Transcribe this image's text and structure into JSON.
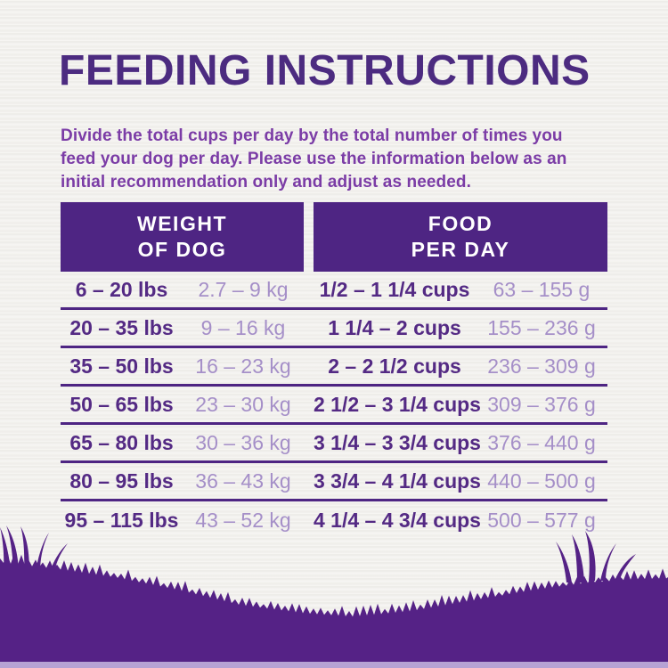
{
  "page": {
    "title": "FEEDING INSTRUCTIONS",
    "intro_lines": [
      "Divide the total cups per day by the total number of times you",
      "feed your dog per day. Please use the information below as an",
      "initial recommendation only and adjust as needed."
    ]
  },
  "table": {
    "headers": {
      "weight_line1": "WEIGHT",
      "weight_line2": "OF DOG",
      "food_line1": "FOOD",
      "food_line2": "PER DAY"
    },
    "rows": [
      {
        "lbs": "6 – 20 lbs",
        "kg": "2.7 – 9 kg",
        "cups": "1/2 – 1 1/4 cups",
        "grams": "63 – 155 g"
      },
      {
        "lbs": "20 – 35 lbs",
        "kg": "9 – 16 kg",
        "cups": "1 1/4 – 2 cups",
        "grams": "155 – 236 g"
      },
      {
        "lbs": "35 – 50 lbs",
        "kg": "16 – 23 kg",
        "cups": "2 – 2 1/2 cups",
        "grams": "236 – 309 g"
      },
      {
        "lbs": "50 – 65 lbs",
        "kg": "23 – 30 kg",
        "cups": "2 1/2 – 3 1/4 cups",
        "grams": "309 – 376 g"
      },
      {
        "lbs": "65 – 80 lbs",
        "kg": "30 – 36 kg",
        "cups": "3 1/4 – 3 3/4 cups",
        "grams": "376 – 440 g"
      },
      {
        "lbs": "80 – 95 lbs",
        "kg": "36 – 43 kg",
        "cups": "3 3/4 – 4 1/4 cups",
        "grams": "440 – 500 g"
      },
      {
        "lbs": "95 – 115 lbs",
        "kg": "43 – 52 kg",
        "cups": "4 1/4 – 4 3/4 cups",
        "grams": "500 – 577 g"
      }
    ]
  },
  "decor": {
    "grass_icon": "grass-silhouette"
  },
  "colors": {
    "background": "#f2f1ee",
    "title_text": "#4c2b80",
    "intro_text": "#7b3ca6",
    "header_bg": "#4e2583",
    "header_text": "#ffffff",
    "divider": "#4e2583",
    "row_bold_text": "#542a84",
    "row_light_text": "#a58fc8",
    "grass": "#552286",
    "bottom_strip": "#b7a2d4"
  }
}
